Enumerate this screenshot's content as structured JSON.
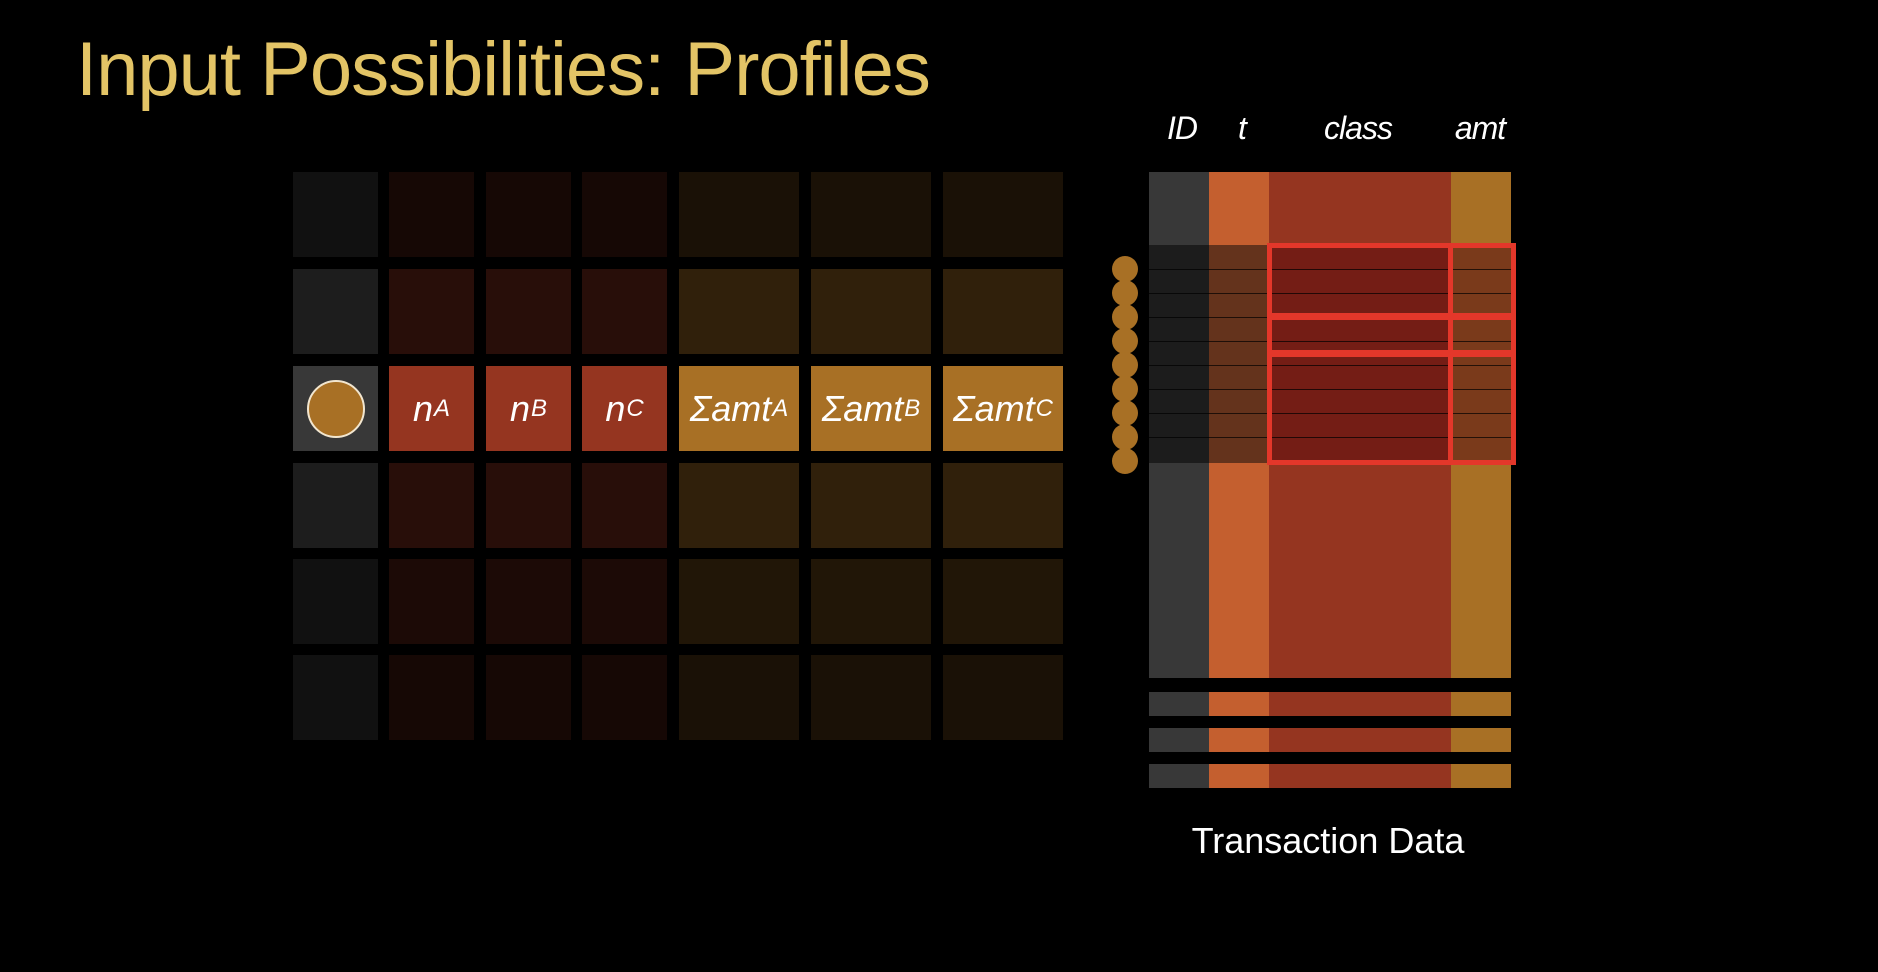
{
  "title": "Input Possibilities: Profiles",
  "profile_table": {
    "cells": [
      {
        "label": "n",
        "sub": "A"
      },
      {
        "label": "n",
        "sub": "B"
      },
      {
        "label": "n",
        "sub": "C"
      },
      {
        "label": "Σamt",
        "sub": "A"
      },
      {
        "label": "Σamt",
        "sub": "B"
      },
      {
        "label": "Σamt",
        "sub": "C"
      }
    ]
  },
  "transaction": {
    "columns": [
      "ID",
      "t",
      "class",
      "amt"
    ],
    "caption": "Transaction Data"
  },
  "colors": {
    "title": "#e3c466",
    "id": "#383838",
    "count": "#c45f2f",
    "class": "#953520",
    "amt": "#a87025",
    "highlight": "#e3372a"
  }
}
